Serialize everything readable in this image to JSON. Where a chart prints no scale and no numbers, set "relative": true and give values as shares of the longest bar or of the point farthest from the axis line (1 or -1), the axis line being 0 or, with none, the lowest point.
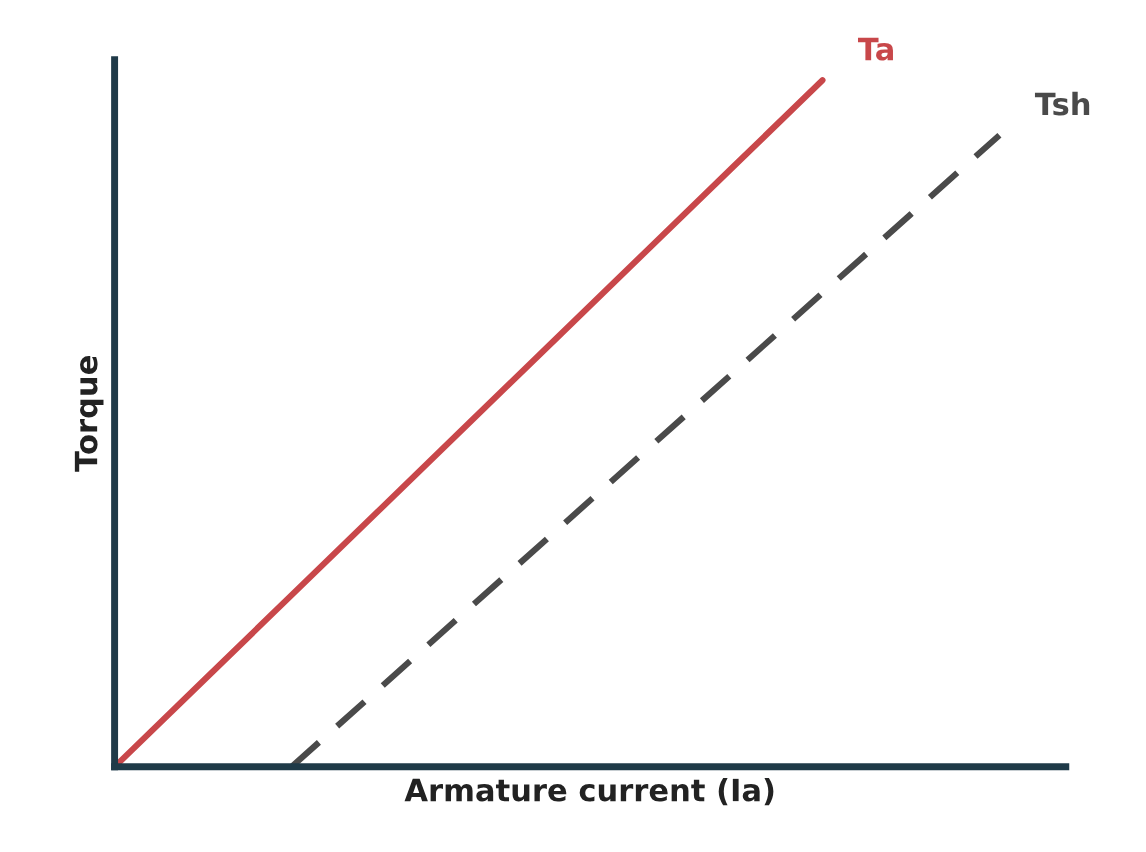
{
  "chart_data": {
    "type": "line",
    "relative": true,
    "xlabel": "Armature current (Ia)",
    "ylabel": "Torque",
    "tick_labels": false,
    "categories": [
      null,
      null,
      null,
      null,
      null,
      null,
      null,
      null,
      null,
      null,
      null
    ],
    "series": [
      {
        "name": "Ta",
        "color": "#c8474a",
        "line_style": "solid",
        "values": [
          0,
          0.125,
          0.25,
          0.375,
          0.5,
          0.625,
          0.75,
          0.875,
          1,
          null,
          null
        ]
      },
      {
        "name": "Tsh",
        "color": "#4a4a4a",
        "line_style": "dashed",
        "values": [
          null,
          null,
          0,
          0.115,
          0.23,
          0.345,
          0.46,
          0.575,
          0.69,
          0.805,
          0.92
        ]
      }
    ]
  }
}
